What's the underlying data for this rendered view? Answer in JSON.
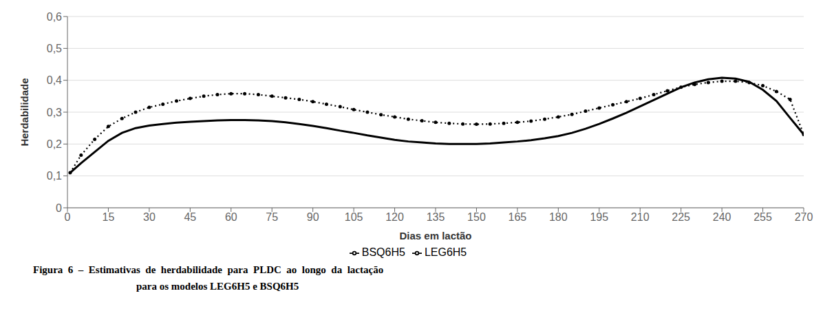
{
  "chart_data": {
    "type": "line",
    "xlabel": "Dias em lactão",
    "ylabel": "Herdabilidade",
    "x": [
      1,
      5,
      10,
      15,
      20,
      25,
      30,
      35,
      40,
      45,
      50,
      55,
      60,
      65,
      70,
      75,
      80,
      85,
      90,
      95,
      100,
      105,
      110,
      115,
      120,
      125,
      130,
      135,
      140,
      145,
      150,
      155,
      160,
      165,
      170,
      175,
      180,
      185,
      190,
      195,
      200,
      205,
      210,
      215,
      220,
      225,
      230,
      235,
      240,
      245,
      250,
      255,
      260,
      265,
      270
    ],
    "series": [
      {
        "name": "LEG6H5",
        "color": "#000000",
        "line_style": "dotted",
        "marker": "circle",
        "values": [
          0.11,
          0.165,
          0.215,
          0.255,
          0.28,
          0.3,
          0.315,
          0.325,
          0.335,
          0.343,
          0.35,
          0.355,
          0.358,
          0.358,
          0.355,
          0.35,
          0.345,
          0.34,
          0.333,
          0.325,
          0.317,
          0.308,
          0.3,
          0.292,
          0.285,
          0.278,
          0.273,
          0.268,
          0.265,
          0.263,
          0.262,
          0.263,
          0.265,
          0.268,
          0.272,
          0.278,
          0.285,
          0.293,
          0.303,
          0.313,
          0.323,
          0.333,
          0.343,
          0.355,
          0.367,
          0.378,
          0.387,
          0.393,
          0.397,
          0.397,
          0.393,
          0.383,
          0.365,
          0.34,
          0.23
        ]
      },
      {
        "name": "BSQ6H5",
        "color": "#000000",
        "line_style": "solid",
        "marker": "none",
        "values": [
          0.11,
          0.14,
          0.175,
          0.21,
          0.235,
          0.25,
          0.258,
          0.263,
          0.267,
          0.27,
          0.272,
          0.274,
          0.275,
          0.275,
          0.274,
          0.272,
          0.268,
          0.263,
          0.257,
          0.25,
          0.242,
          0.235,
          0.227,
          0.22,
          0.213,
          0.208,
          0.205,
          0.202,
          0.2,
          0.2,
          0.2,
          0.202,
          0.205,
          0.208,
          0.212,
          0.218,
          0.225,
          0.235,
          0.248,
          0.263,
          0.28,
          0.298,
          0.318,
          0.338,
          0.358,
          0.378,
          0.393,
          0.403,
          0.408,
          0.405,
          0.395,
          0.37,
          0.335,
          0.282,
          0.23
        ]
      }
    ],
    "xlim": [
      0,
      270
    ],
    "xticks": [
      0,
      15,
      30,
      45,
      60,
      75,
      90,
      105,
      120,
      135,
      150,
      165,
      180,
      195,
      210,
      225,
      240,
      255,
      270
    ],
    "ylim": [
      0,
      0.6
    ],
    "yticks": [
      0,
      {
        "value": 0.1,
        "label": "0,1"
      },
      {
        "value": 0.2,
        "label": "0,2"
      },
      {
        "value": 0.3,
        "label": "0,3"
      },
      {
        "value": 0.4,
        "label": "0,4"
      },
      {
        "value": 0.5,
        "label": "0,5"
      },
      {
        "value": 0.6,
        "label": "0,6"
      }
    ],
    "grid": "y",
    "legend": "bottom",
    "annotations": [
      "Figura  6  –  Estimativas  de  herdabilidade  para  PLDC  ao  longo  da  lactação",
      "para os modelos LEG6H5 e BSQ6H5"
    ]
  }
}
